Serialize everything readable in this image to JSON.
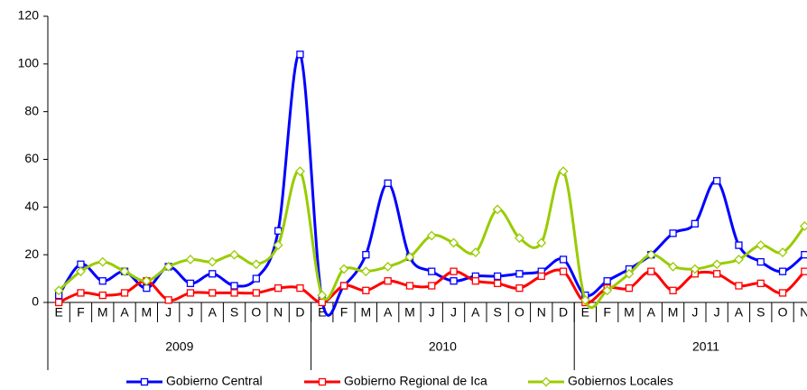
{
  "chart_data": {
    "type": "line",
    "categories": [
      "E",
      "F",
      "M",
      "A",
      "M",
      "J",
      "J",
      "A",
      "S",
      "O",
      "N",
      "D",
      "E",
      "F",
      "M",
      "A",
      "M",
      "J",
      "J",
      "A",
      "S",
      "O",
      "N",
      "D",
      "E",
      "F",
      "M",
      "A",
      "M",
      "J",
      "J",
      "A",
      "S",
      "O",
      "N"
    ],
    "category_groups": [
      "2009",
      "2010",
      "2011"
    ],
    "series": [
      {
        "name": "Gobierno Central",
        "color": "#0000ff",
        "marker": "square",
        "values": [
          3,
          16,
          9,
          13,
          6,
          15,
          8,
          12,
          7,
          10,
          30,
          104,
          1,
          7,
          20,
          50,
          19,
          13,
          9,
          11,
          11,
          12,
          13,
          18,
          3,
          9,
          14,
          20,
          29,
          33,
          51,
          24,
          17,
          13,
          20
        ]
      },
      {
        "name": "Gobierno Regional de Ica",
        "color": "#ff0000",
        "marker": "square",
        "values": [
          0,
          4,
          3,
          4,
          9,
          1,
          4,
          4,
          4,
          4,
          6,
          6,
          0,
          7,
          5,
          9,
          7,
          7,
          13,
          9,
          8,
          6,
          11,
          13,
          0,
          6,
          6,
          13,
          5,
          12,
          12,
          7,
          8,
          4,
          13
        ]
      },
      {
        "name": "Gobiernos Locales",
        "color": "#99cc00",
        "marker": "diamond",
        "values": [
          5,
          13,
          17,
          13,
          9,
          15,
          18,
          17,
          20,
          16,
          24,
          55,
          3,
          14,
          13,
          15,
          19,
          28,
          25,
          21,
          39,
          27,
          25,
          55,
          1,
          5,
          12,
          20,
          15,
          14,
          16,
          18,
          24,
          21,
          32
        ]
      }
    ],
    "ylim": [
      0,
      120
    ],
    "yticks": [
      0,
      20,
      40,
      60,
      80,
      100,
      120
    ],
    "grid": false,
    "legend": "bottom"
  }
}
